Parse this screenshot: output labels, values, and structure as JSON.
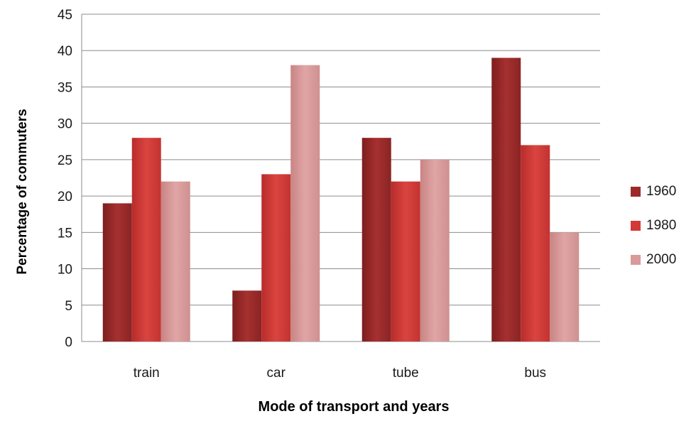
{
  "chart_data": {
    "type": "bar",
    "xlabel": "Mode of transport and years",
    "ylabel": "Percentage of commuters",
    "ylim": [
      0,
      45
    ],
    "yticks": [
      0,
      5,
      10,
      15,
      20,
      25,
      30,
      35,
      40,
      45
    ],
    "grid": true,
    "legend_position": "right",
    "categories": [
      "train",
      "car",
      "tube",
      "bus"
    ],
    "series": [
      {
        "name": "1960",
        "color": "#9c2a2a",
        "values": [
          19,
          7,
          28,
          39
        ]
      },
      {
        "name": "1980",
        "color": "#d23a37",
        "values": [
          28,
          23,
          22,
          27
        ]
      },
      {
        "name": "2000",
        "color": "#d99a9a",
        "values": [
          22,
          38,
          25,
          15
        ]
      }
    ]
  }
}
